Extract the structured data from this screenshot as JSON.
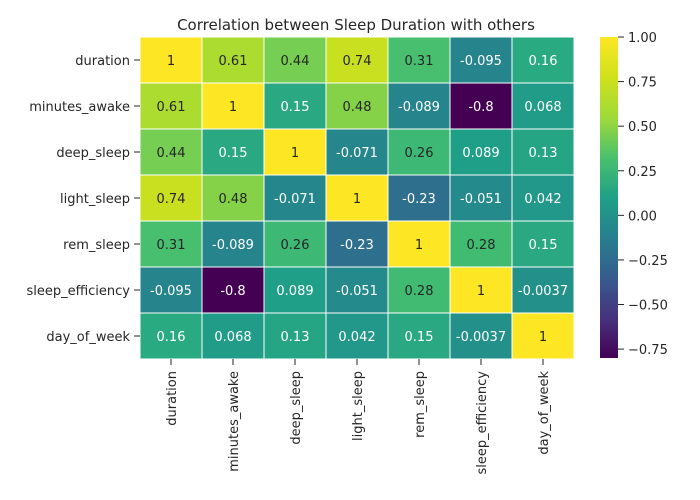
{
  "chart_data": {
    "type": "heatmap",
    "title": "Correlation between Sleep Duration with others",
    "rows": [
      "duration",
      "minutes_awake",
      "deep_sleep",
      "light_sleep",
      "rem_sleep",
      "sleep_efficiency",
      "day_of_week"
    ],
    "columns": [
      "duration",
      "minutes_awake",
      "deep_sleep",
      "light_sleep",
      "rem_sleep",
      "sleep_efficiency",
      "day_of_week"
    ],
    "values": [
      [
        1,
        0.61,
        0.44,
        0.74,
        0.31,
        -0.095,
        0.16
      ],
      [
        0.61,
        1,
        0.15,
        0.48,
        -0.089,
        -0.8,
        0.068
      ],
      [
        0.44,
        0.15,
        1,
        -0.071,
        0.26,
        0.089,
        0.13
      ],
      [
        0.74,
        0.48,
        -0.071,
        1,
        -0.23,
        -0.051,
        0.042
      ],
      [
        0.31,
        -0.089,
        0.26,
        -0.23,
        1,
        0.28,
        0.15
      ],
      [
        -0.095,
        -0.8,
        0.089,
        -0.051,
        0.28,
        1,
        -0.0037
      ],
      [
        0.16,
        0.068,
        0.13,
        0.042,
        0.15,
        -0.0037,
        1
      ]
    ],
    "labels": [
      [
        "1",
        "0.61",
        "0.44",
        "0.74",
        "0.31",
        "-0.095",
        "0.16"
      ],
      [
        "0.61",
        "1",
        "0.15",
        "0.48",
        "-0.089",
        "-0.8",
        "0.068"
      ],
      [
        "0.44",
        "0.15",
        "1",
        "-0.071",
        "0.26",
        "0.089",
        "0.13"
      ],
      [
        "0.74",
        "0.48",
        "-0.071",
        "1",
        "-0.23",
        "-0.051",
        "0.042"
      ],
      [
        "0.31",
        "-0.089",
        "0.26",
        "-0.23",
        "1",
        "0.28",
        "0.15"
      ],
      [
        "-0.095",
        "-0.8",
        "0.089",
        "-0.051",
        "0.28",
        "1",
        "-0.0037"
      ],
      [
        "0.16",
        "0.068",
        "0.13",
        "0.042",
        "0.15",
        "-0.0037",
        "1"
      ]
    ],
    "colormap": "viridis",
    "vmin": -0.8,
    "vmax": 1,
    "colorbar": {
      "ticks": [
        1.0,
        0.75,
        0.5,
        0.25,
        0.0,
        -0.25,
        -0.5,
        -0.75
      ],
      "tick_labels": [
        "1.00",
        "0.75",
        "0.50",
        "0.25",
        "0.00",
        "−0.25",
        "−0.50",
        "−0.75"
      ]
    }
  }
}
